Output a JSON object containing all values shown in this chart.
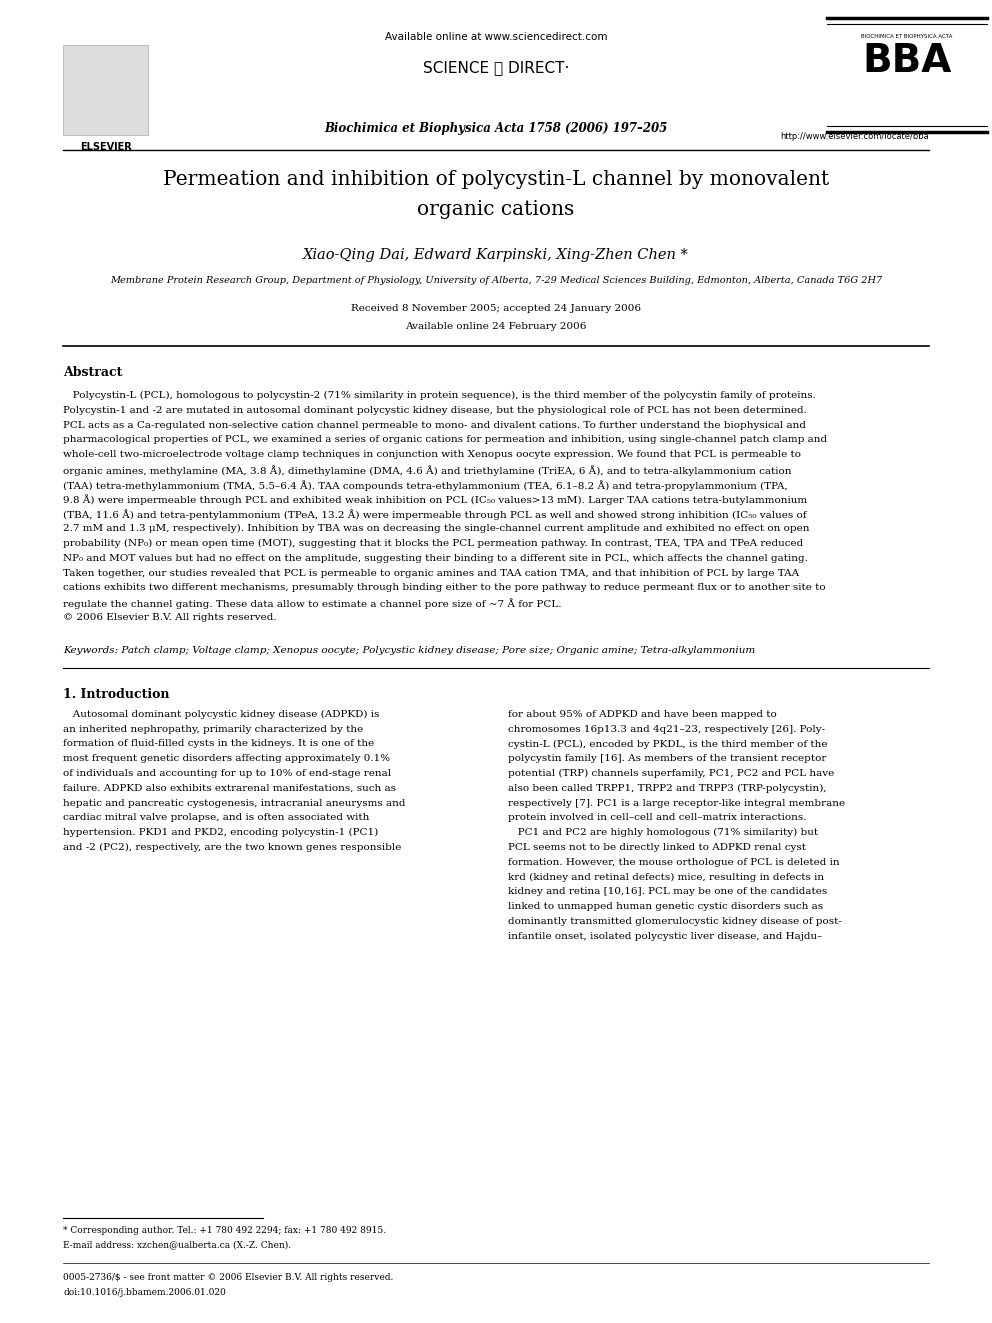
{
  "page_width": 9.92,
  "page_height": 13.23,
  "background_color": "#ffffff",
  "title_line1": "Permeation and inhibition of polycystin-L channel by monovalent",
  "title_line2": "organic cations",
  "authors": "Xiao-Qing Dai, Edward Karpinski, Xing-Zhen Chen *",
  "affiliation": "Membrane Protein Research Group, Department of Physiology, University of Alberta, 7-29 Medical Sciences Building, Edmonton, Alberta, Canada T6G 2H7",
  "received": "Received 8 November 2005; accepted 24 January 2006",
  "available": "Available online 24 February 2006",
  "abstract_title": "Abstract",
  "abstract_lines": [
    "   Polycystin-L (PCL), homologous to polycystin-2 (71% similarity in protein sequence), is the third member of the polycystin family of proteins.",
    "Polycystin-1 and -2 are mutated in autosomal dominant polycystic kidney disease, but the physiological role of PCL has not been determined.",
    "PCL acts as a Ca-regulated non-selective cation channel permeable to mono- and divalent cations. To further understand the biophysical and",
    "pharmacological properties of PCL, we examined a series of organic cations for permeation and inhibition, using single-channel patch clamp and",
    "whole-cell two-microelectrode voltage clamp techniques in conjunction with Xenopus oocyte expression. We found that PCL is permeable to",
    "organic amines, methylamine (MA, 3.8 Å), dimethylamine (DMA, 4.6 Å) and triethylamine (TriEA, 6 Å), and to tetra-alkylammonium cation",
    "(TAA) tetra-methylammonium (TMA, 5.5–6.4 Å). TAA compounds tetra-ethylammonium (TEA, 6.1–8.2 Å) and tetra-propylammonium (TPA,",
    "9.8 Å) were impermeable through PCL and exhibited weak inhibition on PCL (IC₅₀ values>13 mM). Larger TAA cations tetra-butylammonium",
    "(TBA, 11.6 Å) and tetra-pentylammonium (TPeA, 13.2 Å) were impermeable through PCL as well and showed strong inhibition (IC₅₀ values of",
    "2.7 mM and 1.3 μM, respectively). Inhibition by TBA was on decreasing the single-channel current amplitude and exhibited no effect on open",
    "probability (NP₀) or mean open time (MOT), suggesting that it blocks the PCL permeation pathway. In contrast, TEA, TPA and TPeA reduced",
    "NP₀ and MOT values but had no effect on the amplitude, suggesting their binding to a different site in PCL, which affects the channel gating.",
    "Taken together, our studies revealed that PCL is permeable to organic amines and TAA cation TMA, and that inhibition of PCL by large TAA",
    "cations exhibits two different mechanisms, presumably through binding either to the pore pathway to reduce permeant flux or to another site to",
    "regulate the channel gating. These data allow to estimate a channel pore size of ~7 Å for PCL.",
    "© 2006 Elsevier B.V. All rights reserved."
  ],
  "keywords": "Keywords: Patch clamp; Voltage clamp; Xenopus oocyte; Polycystic kidney disease; Pore size; Organic amine; Tetra-alkylammonium",
  "section1_title": "1. Introduction",
  "intro_left_lines": [
    "   Autosomal dominant polycystic kidney disease (ADPKD) is",
    "an inherited nephropathy, primarily characterized by the",
    "formation of fluid-filled cysts in the kidneys. It is one of the",
    "most frequent genetic disorders affecting approximately 0.1%",
    "of individuals and accounting for up to 10% of end-stage renal",
    "failure. ADPKD also exhibits extrarenal manifestations, such as",
    "hepatic and pancreatic cystogenesis, intracranial aneurysms and",
    "cardiac mitral valve prolapse, and is often associated with",
    "hypertension. PKD1 and PKD2, encoding polycystin-1 (PC1)",
    "and -2 (PC2), respectively, are the two known genes responsible"
  ],
  "intro_right_lines": [
    "for about 95% of ADPKD and have been mapped to",
    "chromosomes 16p13.3 and 4q21–23, respectively [26]. Poly-",
    "cystin-L (PCL), encoded by PKDL, is the third member of the",
    "polycystin family [16]. As members of the transient receptor",
    "potential (TRP) channels superfamily, PC1, PC2 and PCL have",
    "also been called TRPP1, TRPP2 and TRPP3 (TRP-polycystin),",
    "respectively [7]. PC1 is a large receptor-like integral membrane",
    "protein involved in cell–cell and cell–matrix interactions.",
    "   PC1 and PC2 are highly homologous (71% similarity) but",
    "PCL seems not to be directly linked to ADPKD renal cyst",
    "formation. However, the mouse orthologue of PCL is deleted in",
    "krd (kidney and retinal defects) mice, resulting in defects in",
    "kidney and retina [10,16]. PCL may be one of the candidates",
    "linked to unmapped human genetic cystic disorders such as",
    "dominantly transmitted glomerulocystic kidney disease of post-",
    "infantile onset, isolated polycystic liver disease, and Hajdu–"
  ],
  "footnote_star": "* Corresponding author. Tel.: +1 780 492 2294; fax: +1 780 492 8915.",
  "footnote_email": "E-mail address: xzchen@ualberta.ca (X.-Z. Chen).",
  "footnote_issn": "0005-2736/$ - see front matter © 2006 Elsevier B.V. All rights reserved.",
  "footnote_doi": "doi:10.1016/j.bbamem.2006.01.020",
  "available_online_header": "Available online at www.sciencedirect.com",
  "sciencedirect": "SCIENCE ⓓ DIRECT·",
  "journal_line": "Biochimica et Biophysica Acta 1758 (2006) 197–205",
  "bba_subtitle": "BIOCHIMICA ET BIOPHYSICA ACTA",
  "bba_url": "http://www.elsevier.com/locate/bba",
  "elsevier_label": "ELSEVIER"
}
